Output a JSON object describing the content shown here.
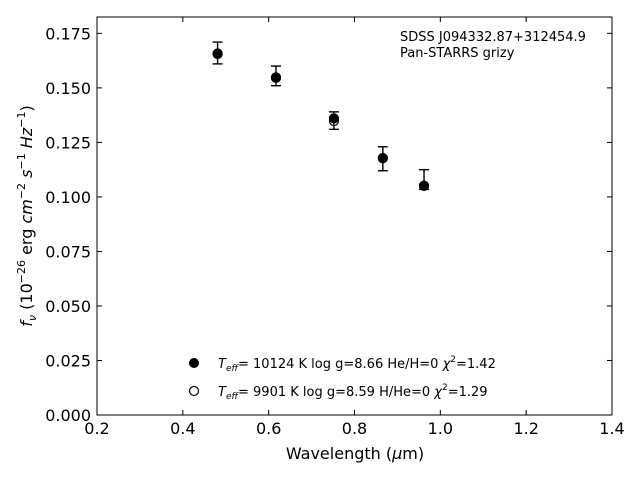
{
  "chart_data": {
    "type": "scatter",
    "annotation": {
      "line1": "SDSS J094332.87+312454.9",
      "line2": "Pan-STARRS grizy"
    },
    "xlabel": "Wavelength (μm)",
    "ylabel": "f_ν (10^-26 erg cm^-2 s^-1 Hz^-1)",
    "xlim": [
      0.2,
      1.4
    ],
    "ylim": [
      0.0,
      0.1825
    ],
    "xticks": [
      "0.2",
      "0.4",
      "0.6",
      "0.8",
      "1.0",
      "1.2",
      "1.4"
    ],
    "yticks": [
      "0.000",
      "0.025",
      "0.050",
      "0.075",
      "0.100",
      "0.125",
      "0.150",
      "0.175"
    ],
    "observed": {
      "x": [
        0.481,
        0.617,
        0.752,
        0.866,
        0.962
      ],
      "y": [
        0.166,
        0.1555,
        0.135,
        0.1175,
        0.108
      ],
      "yerr": [
        0.005,
        0.0045,
        0.004,
        0.0055,
        0.0045
      ]
    },
    "series": [
      {
        "marker": "filled",
        "label": "T_eff= 10124 K  log g=8.66  He/H=0  χ²=1.42",
        "x": [
          0.481,
          0.617,
          0.752,
          0.866,
          0.962
        ],
        "y": [
          0.1658,
          0.1548,
          0.136,
          0.1178,
          0.1052
        ]
      },
      {
        "marker": "open",
        "label": "T_eff=  9901 K  log g=8.59  H/He=0  χ²=1.29",
        "x": [
          0.481,
          0.617,
          0.752,
          0.866,
          0.962
        ],
        "y": [
          0.1655,
          0.1546,
          0.1348,
          0.1178,
          0.105
        ]
      }
    ]
  }
}
